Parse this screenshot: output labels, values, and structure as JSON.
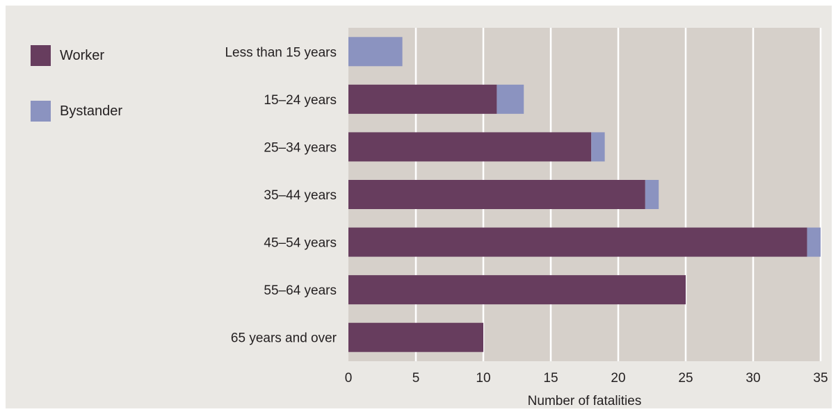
{
  "legend": {
    "worker": {
      "label": "Worker",
      "color": "#673d5e"
    },
    "bystander": {
      "label": "Bystander",
      "color": "#8b93c0"
    }
  },
  "colors": {
    "background": "#eae8e4",
    "plot_area": "#d6d0ca",
    "gridline": "#ffffff",
    "text": "#231f20"
  },
  "chart_data": {
    "type": "bar",
    "orientation": "horizontal",
    "stacked": true,
    "categories": [
      "Less than 15 years",
      "15–24 years",
      "25–34 years",
      "35–44 years",
      "45–54 years",
      "55–64 years",
      "65 years and over"
    ],
    "series": [
      {
        "name": "Worker",
        "values": [
          0,
          11,
          18,
          22,
          34,
          25,
          10
        ]
      },
      {
        "name": "Bystander",
        "values": [
          4,
          2,
          1,
          1,
          1,
          0,
          0
        ]
      }
    ],
    "title": "",
    "xlabel": "Number of fatalities",
    "ylabel": "",
    "xlim": [
      0,
      35
    ],
    "xticks": [
      "0",
      "5",
      "10",
      "15",
      "20",
      "25",
      "30",
      "35"
    ],
    "grid": true,
    "legend_position": "top-left"
  }
}
